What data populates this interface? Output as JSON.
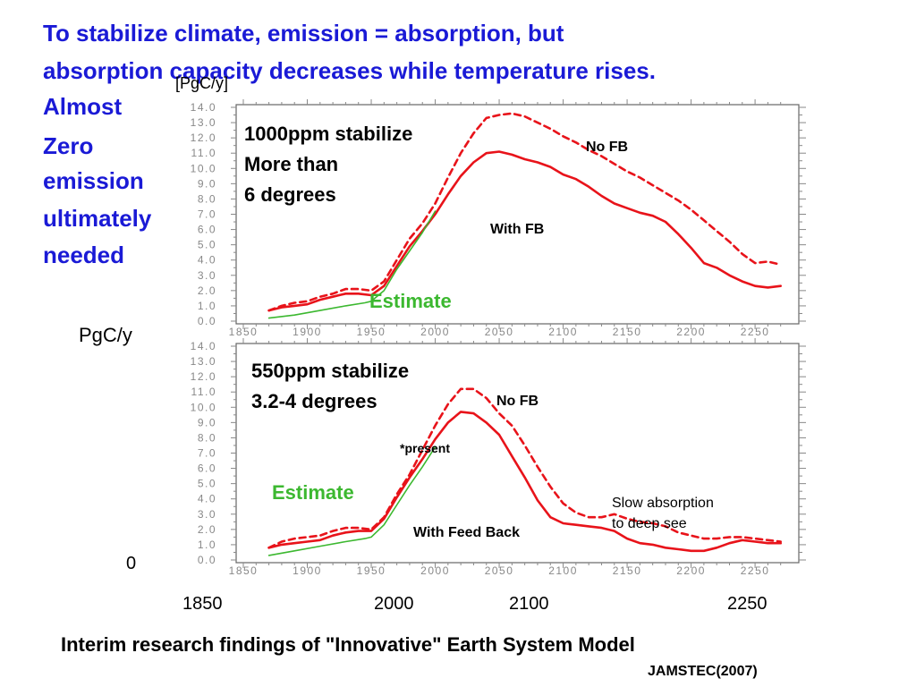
{
  "slide": {
    "title_line1": "To stabilize climate, emission = absorption, but",
    "title_line2": "absorption capacity decreases while temperature rises.",
    "side_note": [
      "Almost",
      "Zero",
      "emission",
      "ultimately",
      "needed"
    ],
    "pgc_y_label": "PgC/y",
    "top_unit": "[PgC/y]",
    "zero_label": "0",
    "bottom_years": [
      "1850",
      "2000",
      "2100",
      "2250"
    ],
    "caption": "Interim research findings of \"Innovative\" Earth System Model",
    "credit": "JAMSTEC(2007)",
    "colors": {
      "title": "#1a1ad6",
      "series": "#e8131a",
      "estimate": "#3cb830",
      "axis": "#888888"
    }
  },
  "chart_data": [
    {
      "type": "line",
      "xlim": [
        1850,
        2280
      ],
      "ylim": [
        0,
        14
      ],
      "xticks": [
        "1850",
        "1900",
        "1950",
        "2000",
        "2050",
        "2100",
        "2150",
        "2200",
        "2250"
      ],
      "yticks": [
        "0.0",
        "1.0",
        "2.0",
        "3.0",
        "4.0",
        "5.0",
        "6.0",
        "7.0",
        "8.0",
        "9.0",
        "10.0",
        "11.0",
        "12.0",
        "13.0",
        "14.0"
      ],
      "annotations": {
        "scenario_line1": "1000ppm stabilize",
        "scenario_line2": "More than",
        "scenario_line3": "6 degrees",
        "no_fb": "No FB",
        "with_fb": "With FB",
        "estimate": "Estimate"
      },
      "series": [
        {
          "style": "dashed",
          "x": [
            1870,
            1880,
            1890,
            1900,
            1910,
            1920,
            1930,
            1940,
            1950,
            1960,
            1970,
            1980,
            1990,
            2000,
            2010,
            2020,
            2030,
            2040,
            2050,
            2060,
            2070,
            2080,
            2090,
            2100,
            2110,
            2120,
            2130,
            2140,
            2150,
            2160,
            2170,
            2180,
            2190,
            2200,
            2210,
            2220,
            2230,
            2240,
            2250,
            2260,
            2270
          ],
          "y": [
            0.7,
            1.0,
            1.2,
            1.3,
            1.6,
            1.8,
            2.1,
            2.1,
            2.0,
            2.6,
            4.0,
            5.4,
            6.4,
            7.7,
            9.4,
            11.0,
            12.3,
            13.3,
            13.5,
            13.6,
            13.4,
            13.0,
            12.6,
            12.1,
            11.7,
            11.2,
            10.8,
            10.3,
            9.8,
            9.4,
            8.9,
            8.4,
            7.9,
            7.3,
            6.6,
            5.9,
            5.2,
            4.4,
            3.8,
            3.9,
            3.7
          ]
        },
        {
          "style": "solid",
          "x": [
            1870,
            1880,
            1890,
            1900,
            1910,
            1920,
            1930,
            1940,
            1950,
            1960,
            1970,
            1980,
            1990,
            2000,
            2010,
            2020,
            2030,
            2040,
            2050,
            2060,
            2070,
            2080,
            2090,
            2100,
            2110,
            2120,
            2130,
            2140,
            2150,
            2160,
            2170,
            2180,
            2190,
            2200,
            2210,
            2220,
            2230,
            2240,
            2250,
            2260,
            2270
          ],
          "y": [
            0.7,
            0.9,
            1.0,
            1.1,
            1.4,
            1.6,
            1.8,
            1.8,
            1.7,
            2.3,
            3.6,
            4.9,
            5.9,
            7.0,
            8.3,
            9.5,
            10.4,
            11.0,
            11.1,
            10.9,
            10.6,
            10.4,
            10.1,
            9.6,
            9.3,
            8.8,
            8.2,
            7.7,
            7.4,
            7.1,
            6.9,
            6.5,
            5.7,
            4.8,
            3.8,
            3.5,
            3.0,
            2.6,
            2.3,
            2.2,
            2.3
          ]
        },
        {
          "style": "green",
          "x": [
            1870,
            1890,
            1910,
            1930,
            1945,
            1950,
            1960,
            1970,
            1980,
            1990,
            2000
          ],
          "y": [
            0.2,
            0.4,
            0.7,
            1.0,
            1.2,
            1.3,
            2.0,
            3.4,
            4.6,
            5.8,
            7.2
          ]
        }
      ]
    },
    {
      "type": "line",
      "xlim": [
        1850,
        2280
      ],
      "ylim": [
        0,
        14
      ],
      "xticks": [
        "1850",
        "1900",
        "1950",
        "2000",
        "2050",
        "2100",
        "2150",
        "2200",
        "2250"
      ],
      "yticks": [
        "0.0",
        "1.0",
        "2.0",
        "3.0",
        "4.0",
        "5.0",
        "6.0",
        "7.0",
        "8.0",
        "9.0",
        "10.0",
        "11.0",
        "12.0",
        "13.0",
        "14.0"
      ],
      "annotations": {
        "scenario_line1": "550ppm stabilize",
        "scenario_line2": "3.2-4 degrees",
        "no_fb": "No FB",
        "present": "*present",
        "estimate": "Estimate",
        "slow_line1": "Slow absorption",
        "slow_line2": "to deep see",
        "with_feed_back": "With Feed Back"
      },
      "series": [
        {
          "style": "dashed",
          "x": [
            1870,
            1880,
            1890,
            1900,
            1910,
            1920,
            1930,
            1940,
            1950,
            1960,
            1970,
            1980,
            1990,
            2000,
            2010,
            2020,
            2030,
            2040,
            2050,
            2060,
            2070,
            2080,
            2090,
            2100,
            2110,
            2120,
            2130,
            2140,
            2150,
            2160,
            2170,
            2180,
            2190,
            2200,
            2210,
            2220,
            2230,
            2240,
            2250,
            2260,
            2270
          ],
          "y": [
            0.8,
            1.2,
            1.4,
            1.5,
            1.6,
            1.9,
            2.1,
            2.1,
            2.0,
            2.8,
            4.3,
            5.6,
            7.2,
            8.8,
            10.2,
            11.2,
            11.2,
            10.6,
            9.6,
            8.8,
            7.5,
            6.1,
            4.8,
            3.7,
            3.1,
            2.8,
            2.8,
            3.0,
            2.7,
            2.5,
            2.4,
            2.2,
            1.8,
            1.6,
            1.4,
            1.4,
            1.5,
            1.5,
            1.4,
            1.3,
            1.2
          ]
        },
        {
          "style": "solid",
          "x": [
            1870,
            1880,
            1890,
            1900,
            1910,
            1920,
            1930,
            1940,
            1950,
            1960,
            1970,
            1980,
            1990,
            2000,
            2010,
            2020,
            2030,
            2040,
            2050,
            2060,
            2070,
            2080,
            2090,
            2100,
            2110,
            2120,
            2130,
            2140,
            2150,
            2160,
            2170,
            2180,
            2190,
            2200,
            2210,
            2220,
            2230,
            2240,
            2250,
            2260,
            2270
          ],
          "y": [
            0.8,
            1.0,
            1.1,
            1.2,
            1.3,
            1.6,
            1.8,
            1.9,
            1.9,
            2.7,
            4.1,
            5.4,
            6.6,
            7.9,
            9.0,
            9.7,
            9.6,
            9.0,
            8.2,
            6.8,
            5.4,
            3.9,
            2.8,
            2.4,
            2.3,
            2.2,
            2.1,
            1.9,
            1.4,
            1.1,
            1.0,
            0.8,
            0.7,
            0.6,
            0.6,
            0.8,
            1.1,
            1.3,
            1.2,
            1.1,
            1.1
          ]
        },
        {
          "style": "green",
          "x": [
            1870,
            1890,
            1910,
            1930,
            1945,
            1950,
            1960,
            1970,
            1980,
            1990,
            2000
          ],
          "y": [
            0.3,
            0.6,
            0.9,
            1.2,
            1.4,
            1.5,
            2.3,
            3.6,
            4.9,
            6.1,
            7.4
          ]
        }
      ]
    }
  ]
}
